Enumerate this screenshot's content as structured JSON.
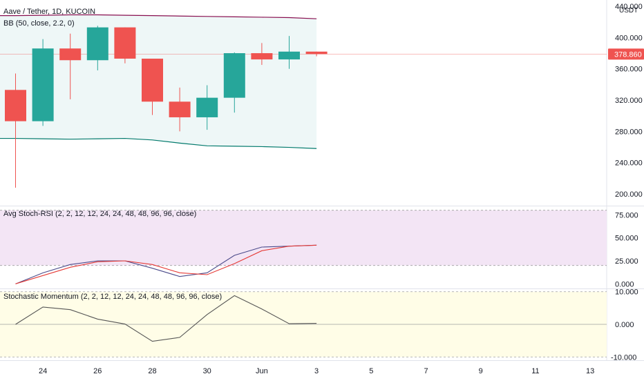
{
  "symbol_title": "Aave / Tether, 1D, KUCOIN",
  "bb_label": "BB (50, close, 2.2, 0)",
  "stoch_label": "Avg Stoch-RSI (2, 2, 12, 12, 24, 24, 48, 48, 96, 96, close)",
  "mom_label": "Stochastic Momentum (2, 2, 12, 12, 24, 24, 48, 48, 96, 96, close)",
  "currency": "USDT",
  "last_price": "378.860",
  "colors": {
    "up": "#26a69a",
    "down": "#ef5350",
    "bb_upper": "#880e4f",
    "bb_lower": "#00796b",
    "bb_fill": "#eef7f7",
    "stoch_fill": "#f3e5f5",
    "mom_fill": "#fffde7",
    "stoch_k": "#4a4a8a",
    "stoch_d": "#e53935",
    "momentum": "#555555"
  },
  "chart_data": [
    {
      "type": "candlestick",
      "x": [
        "May 23",
        "May 24",
        "May 25",
        "May 26",
        "May 27",
        "May 28",
        "May 29",
        "May 30",
        "May 31",
        "Jun 1",
        "Jun 2",
        "Jun 3"
      ],
      "open": [
        333,
        293,
        386,
        371,
        413,
        373,
        318,
        298,
        323,
        380,
        372,
        382
      ],
      "high": [
        354,
        398,
        405,
        415,
        413,
        373,
        336,
        339,
        381,
        393,
        402,
        382
      ],
      "low": [
        208,
        287,
        321,
        358,
        367,
        301,
        280,
        282,
        304,
        365,
        360,
        376
      ],
      "close": [
        293,
        386,
        371,
        413,
        373,
        318,
        298,
        323,
        380,
        372,
        382,
        378.86
      ],
      "bb_upper": [
        428,
        428.5,
        429,
        429,
        428.5,
        428,
        427.5,
        427,
        426.5,
        426,
        425.5,
        424
      ],
      "bb_lower": [
        271,
        270.5,
        270,
        270.5,
        271,
        269,
        265,
        261.5,
        261,
        260.5,
        259.5,
        258
      ],
      "ylim": [
        185,
        448
      ],
      "yticks": [
        "440.000",
        "400.000",
        "360.000",
        "320.000",
        "280.000",
        "240.000",
        "200.000"
      ],
      "ytick_values": [
        440,
        400,
        360,
        320,
        280,
        240,
        200
      ]
    },
    {
      "type": "line",
      "series": [
        {
          "values": [
            0,
            12,
            21,
            25,
            25,
            17,
            8,
            12,
            31,
            40,
            41,
            42
          ]
        },
        {
          "values": [
            0,
            9,
            18,
            24,
            25,
            21,
            12,
            10,
            22,
            36,
            41,
            42
          ]
        }
      ],
      "ylim": [
        -5,
        85
      ],
      "yticks": [
        "75.000",
        "50.000",
        "25.000",
        "0.000"
      ],
      "ytick_values": [
        75,
        50,
        25,
        0
      ],
      "bands": [
        20,
        80
      ]
    },
    {
      "type": "line",
      "series": [
        {
          "values": [
            0,
            5.3,
            4.5,
            1.6,
            0.1,
            -5.2,
            -4,
            3,
            8.8,
            4.7,
            0.2,
            0.3
          ]
        }
      ],
      "ylim": [
        -11,
        11
      ],
      "yticks": [
        "10.000",
        "0.000",
        "-10.000"
      ],
      "ytick_values": [
        10,
        0,
        -10
      ],
      "bands": [
        10,
        -10
      ]
    }
  ],
  "x_axis_labels": [
    "24",
    "26",
    "28",
    "30",
    "Jun",
    "3",
    "5",
    "7",
    "9",
    "11",
    "13"
  ]
}
